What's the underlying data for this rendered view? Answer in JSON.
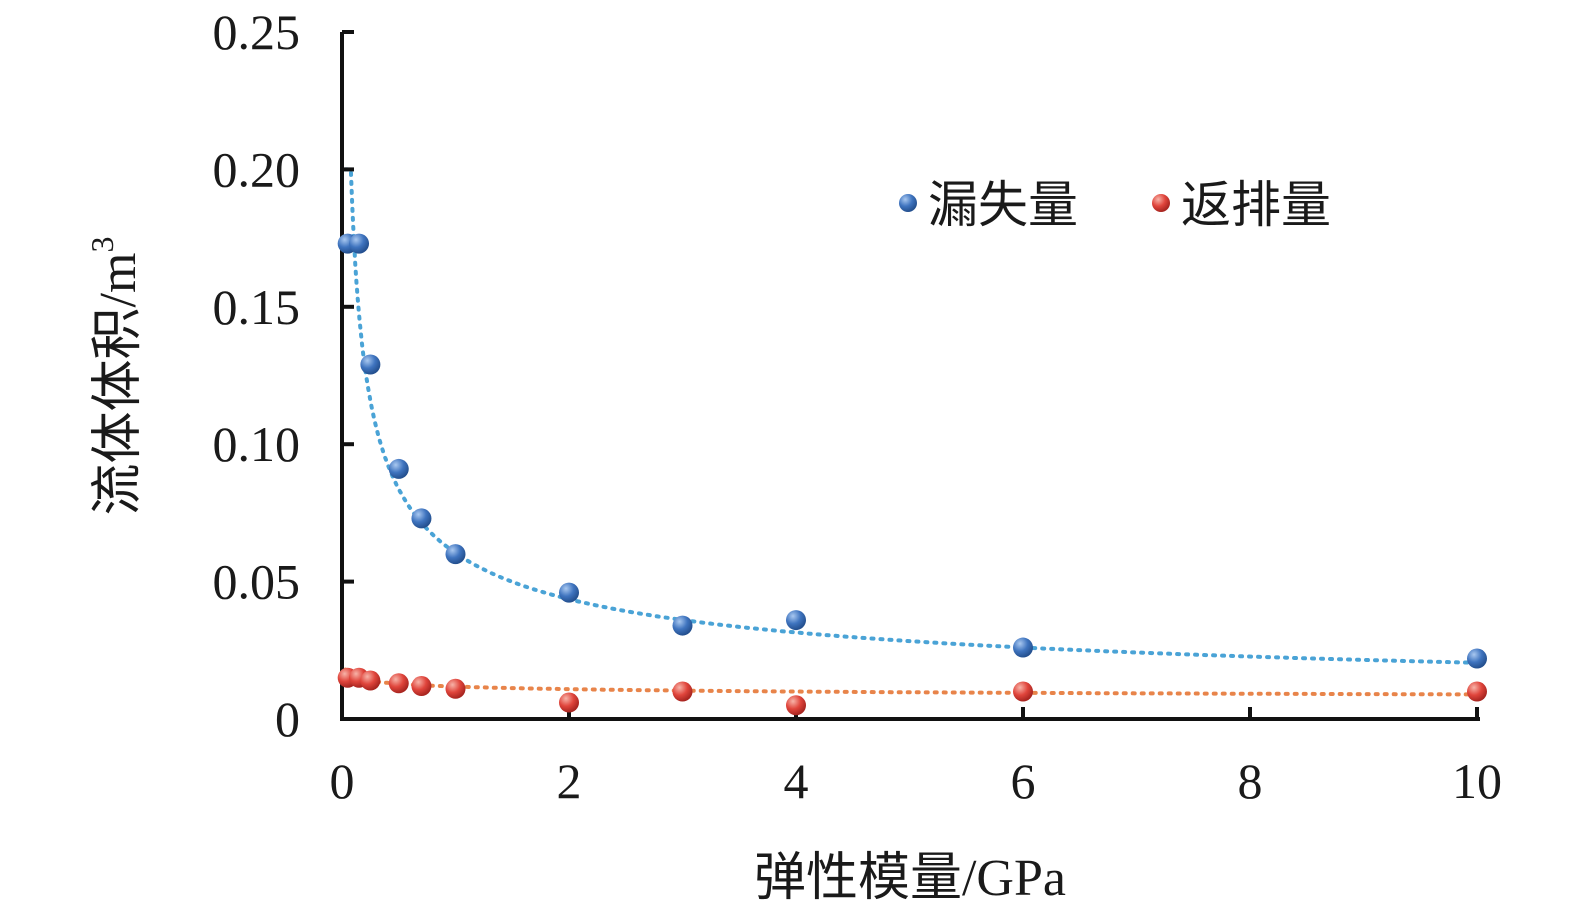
{
  "chart_data": {
    "type": "scatter",
    "xlabel": "弹性模量/GPa",
    "ylabel": "流体体积/m",
    "ylabel_superscript": "3",
    "xlim": [
      0,
      10
    ],
    "ylim": [
      0,
      0.25
    ],
    "x_ticks": [
      "0",
      "2",
      "4",
      "6",
      "8",
      "10"
    ],
    "y_ticks": [
      "0",
      "0.05",
      "0.10",
      "0.15",
      "0.20",
      "0.25"
    ],
    "legend_position": "top-right",
    "grid": false,
    "series": [
      {
        "name": "漏失量",
        "color": "#3f74bf",
        "trend_color": "#4aa3d6",
        "points": [
          {
            "x": 0.05,
            "y": 0.173
          },
          {
            "x": 0.15,
            "y": 0.173
          },
          {
            "x": 0.25,
            "y": 0.129
          },
          {
            "x": 0.5,
            "y": 0.091
          },
          {
            "x": 0.7,
            "y": 0.073
          },
          {
            "x": 1.0,
            "y": 0.06
          },
          {
            "x": 2.0,
            "y": 0.046
          },
          {
            "x": 3.0,
            "y": 0.034
          },
          {
            "x": 4.0,
            "y": 0.036
          },
          {
            "x": 6.0,
            "y": 0.026
          },
          {
            "x": 10.0,
            "y": 0.022
          }
        ],
        "trend": {
          "kind": "power",
          "a": 0.0604,
          "b": -0.47
        }
      },
      {
        "name": "返排量",
        "color": "#e0453c",
        "trend_color": "#e8844a",
        "points": [
          {
            "x": 0.05,
            "y": 0.015
          },
          {
            "x": 0.15,
            "y": 0.015
          },
          {
            "x": 0.25,
            "y": 0.014
          },
          {
            "x": 0.5,
            "y": 0.013
          },
          {
            "x": 0.7,
            "y": 0.012
          },
          {
            "x": 1.0,
            "y": 0.011
          },
          {
            "x": 2.0,
            "y": 0.006
          },
          {
            "x": 3.0,
            "y": 0.01
          },
          {
            "x": 4.0,
            "y": 0.005
          },
          {
            "x": 6.0,
            "y": 0.01
          },
          {
            "x": 10.0,
            "y": 0.01
          }
        ],
        "trend": {
          "kind": "power",
          "a": 0.0118,
          "b": -0.12
        }
      }
    ]
  }
}
